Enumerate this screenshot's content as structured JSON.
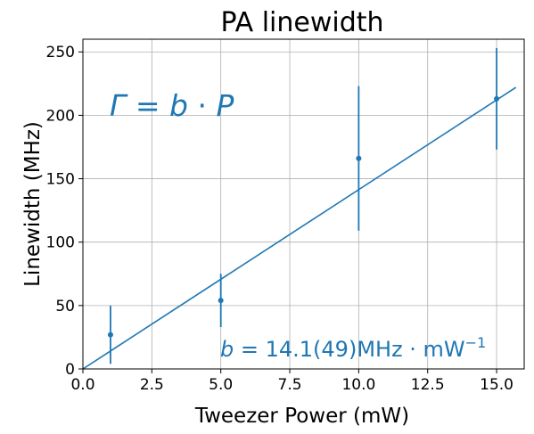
{
  "chart_data": {
    "type": "scatter",
    "title": "PA linewidth",
    "xlabel": "Tweezer Power (mW)",
    "ylabel": "Linewidth (MHz)",
    "xlim": [
      0,
      16
    ],
    "ylim": [
      0,
      260
    ],
    "xticks": [
      0,
      2.5,
      5,
      7.5,
      10,
      12.5,
      15
    ],
    "xtick_labels": [
      "0.0",
      "2.5",
      "5.0",
      "7.5",
      "10.0",
      "12.5",
      "15.0"
    ],
    "yticks": [
      0,
      50,
      100,
      150,
      200,
      250
    ],
    "ytick_labels": [
      "0",
      "50",
      "100",
      "150",
      "200",
      "250"
    ],
    "grid": true,
    "color": "#1f77b4",
    "series": [
      {
        "type": "errorbar",
        "x": [
          1,
          5,
          10,
          15
        ],
        "y": [
          27,
          54,
          166,
          213
        ],
        "yerr": [
          23,
          21,
          57,
          40
        ]
      },
      {
        "type": "line",
        "x": [
          0,
          15.7
        ],
        "y": [
          0,
          222
        ]
      }
    ],
    "annotations": {
      "formula": {
        "lhs": "Γ",
        "eq": " = ",
        "b": "b",
        "dot": " · ",
        "p": "P"
      },
      "fit": {
        "b": "b",
        "eq": " = ",
        "value": "14.1(49)",
        "unit": "MHz · mW",
        "exp": "−1"
      }
    }
  }
}
